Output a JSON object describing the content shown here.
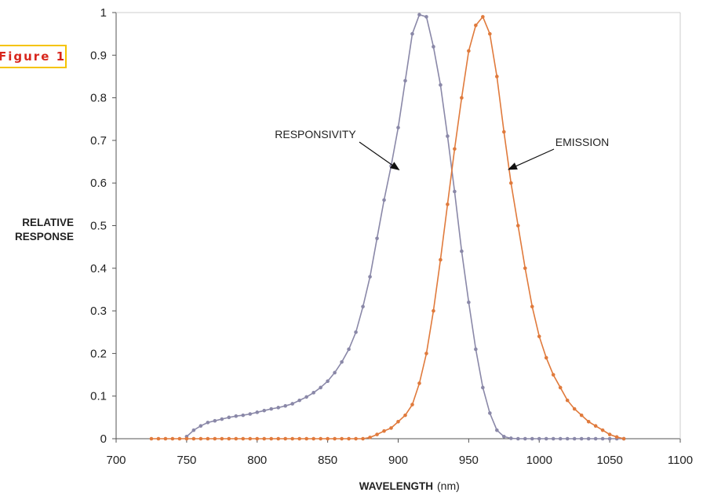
{
  "figure_tag": "Figure 1",
  "chart_data": {
    "type": "line",
    "xlabel_bold": "WAVELENGTH",
    "xlabel_unit": "(nm)",
    "ylabel_lines": [
      "RELATIVE",
      "RESPONSE"
    ],
    "xlim": [
      700,
      1100
    ],
    "ylim": [
      0,
      1
    ],
    "x_ticks": [
      "700",
      "750",
      "800",
      "850",
      "900",
      "950",
      "1000",
      "1050",
      "1100"
    ],
    "y_ticks": [
      "0",
      "0.1",
      "0.2",
      "0.3",
      "0.4",
      "0.5",
      "0.6",
      "0.7",
      "0.8",
      "0.9",
      "1"
    ],
    "grid": false,
    "annotations": [
      {
        "text": "RESPONSIVITY",
        "points_to": [
          895,
          0.62
        ]
      },
      {
        "text": "EMISSION",
        "points_to": [
          976,
          0.63
        ]
      }
    ],
    "series": [
      {
        "name": "RESPONSIVITY",
        "color": "#8a88a8",
        "x": [
          750,
          755,
          760,
          765,
          770,
          775,
          780,
          785,
          790,
          795,
          800,
          805,
          810,
          815,
          820,
          825,
          830,
          835,
          840,
          845,
          850,
          855,
          860,
          865,
          870,
          875,
          880,
          885,
          890,
          895,
          900,
          905,
          910,
          915,
          920,
          925,
          930,
          935,
          940,
          945,
          950,
          955,
          960,
          965,
          970,
          975,
          980,
          985,
          990,
          995,
          1000,
          1005,
          1010,
          1015,
          1020,
          1025,
          1030,
          1035,
          1040,
          1045,
          1050,
          1055,
          1060
        ],
        "y": [
          0.005,
          0.02,
          0.03,
          0.038,
          0.042,
          0.046,
          0.05,
          0.053,
          0.055,
          0.058,
          0.062,
          0.066,
          0.07,
          0.073,
          0.077,
          0.082,
          0.09,
          0.098,
          0.108,
          0.12,
          0.135,
          0.155,
          0.18,
          0.21,
          0.25,
          0.31,
          0.38,
          0.47,
          0.56,
          0.64,
          0.73,
          0.84,
          0.95,
          0.995,
          0.99,
          0.92,
          0.83,
          0.71,
          0.58,
          0.44,
          0.32,
          0.21,
          0.12,
          0.06,
          0.02,
          0.005,
          0.001,
          0,
          0,
          0,
          0,
          0,
          0,
          0,
          0,
          0,
          0,
          0,
          0,
          0,
          0,
          0,
          0
        ]
      },
      {
        "name": "EMISSION",
        "color": "#e07a3c",
        "x": [
          725,
          730,
          735,
          740,
          745,
          750,
          755,
          760,
          765,
          770,
          775,
          780,
          785,
          790,
          795,
          800,
          805,
          810,
          815,
          820,
          825,
          830,
          835,
          840,
          845,
          850,
          855,
          860,
          865,
          870,
          875,
          880,
          885,
          890,
          895,
          900,
          905,
          910,
          915,
          920,
          925,
          930,
          935,
          940,
          945,
          950,
          955,
          960,
          965,
          970,
          975,
          980,
          985,
          990,
          995,
          1000,
          1005,
          1010,
          1015,
          1020,
          1025,
          1030,
          1035,
          1040,
          1045,
          1050,
          1055,
          1060
        ],
        "y": [
          0,
          0,
          0,
          0,
          0,
          0,
          0,
          0,
          0,
          0,
          0,
          0,
          0,
          0,
          0,
          0,
          0,
          0,
          0,
          0,
          0,
          0,
          0,
          0,
          0,
          0,
          0,
          0,
          0,
          0,
          0,
          0.003,
          0.01,
          0.018,
          0.025,
          0.04,
          0.055,
          0.08,
          0.13,
          0.2,
          0.3,
          0.42,
          0.55,
          0.68,
          0.8,
          0.91,
          0.97,
          0.99,
          0.95,
          0.85,
          0.72,
          0.6,
          0.5,
          0.4,
          0.31,
          0.24,
          0.19,
          0.15,
          0.12,
          0.09,
          0.07,
          0.055,
          0.04,
          0.03,
          0.02,
          0.01,
          0.004,
          0
        ]
      }
    ]
  }
}
